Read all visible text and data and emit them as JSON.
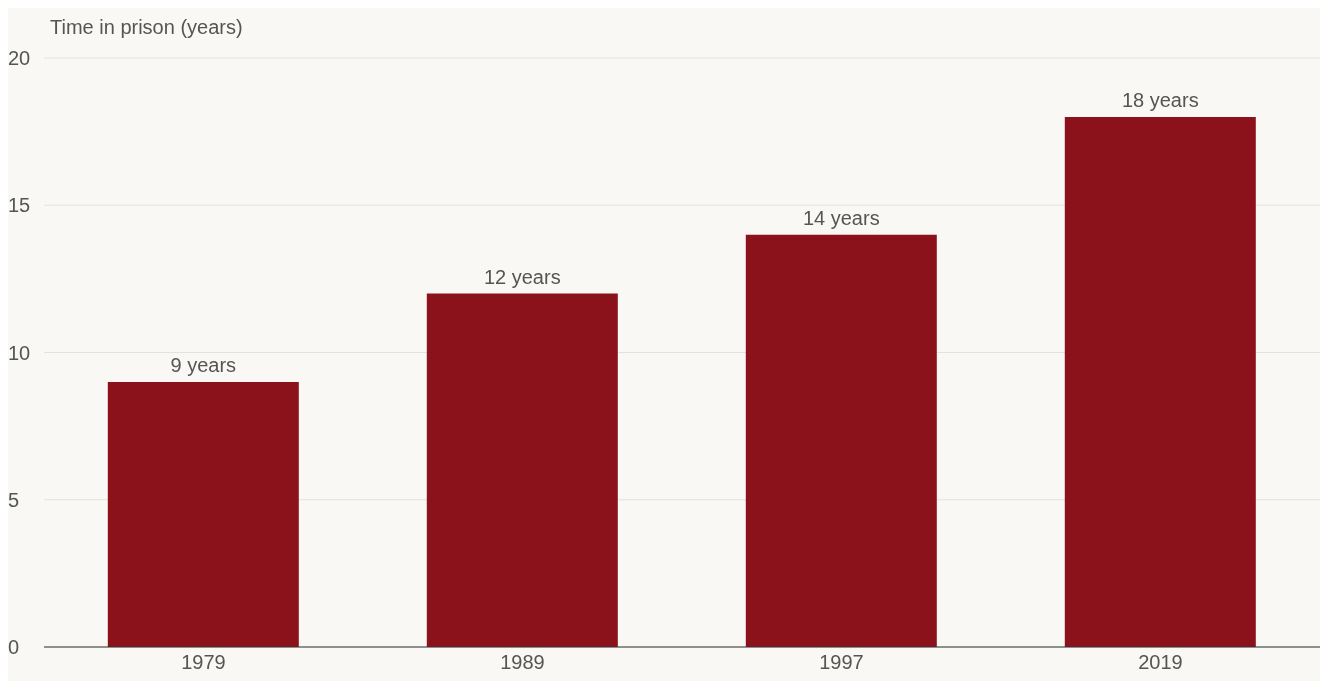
{
  "chart_data": {
    "type": "bar",
    "ylabel": "Time in prison (years)",
    "categories": [
      "1979",
      "1989",
      "1997",
      "2019"
    ],
    "values": [
      9,
      12,
      14,
      18
    ],
    "value_labels": [
      "9 years",
      "12 years",
      "14 years",
      "18 years"
    ],
    "color": "#8b121b",
    "ylim": [
      0,
      20
    ],
    "yticks": [
      0,
      5,
      10,
      15,
      20
    ],
    "grid": "y",
    "legend": false
  }
}
